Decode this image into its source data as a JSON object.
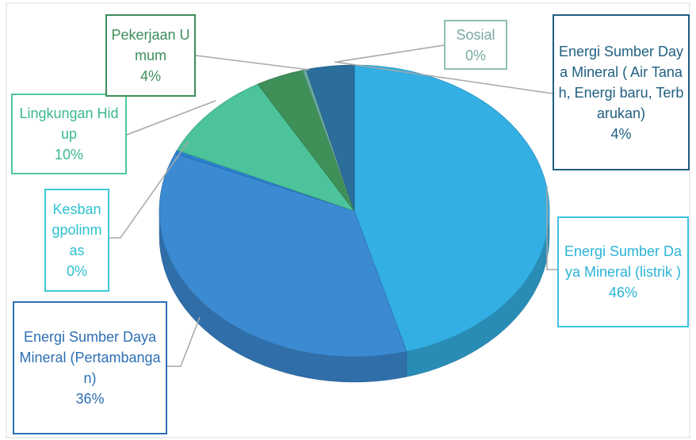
{
  "chart_data": {
    "type": "pie3d",
    "categories": [
      "Energi Sumber Daya Mineral (listrik )",
      "Energi Sumber Daya Mineral (Pertambangan)",
      "Kesbangpolinmas",
      "Lingkungan Hidup",
      "Pekerjaan Umum",
      "Sosial",
      "Energi Sumber Daya Mineral ( Air Tanah, Energi baru, Terbarukan)"
    ],
    "values": [
      46,
      36,
      0.4,
      10,
      4,
      0.3,
      4
    ],
    "value_labels": [
      "46%",
      "36%",
      "0%",
      "10%",
      "4%",
      "0%",
      "4%"
    ],
    "colors": [
      "#33afe3",
      "#3b8ad2",
      "#2b80d0",
      "#4cc39a",
      "#3f8f58",
      "#6aa9a0",
      "#2b6e9c"
    ]
  }
}
